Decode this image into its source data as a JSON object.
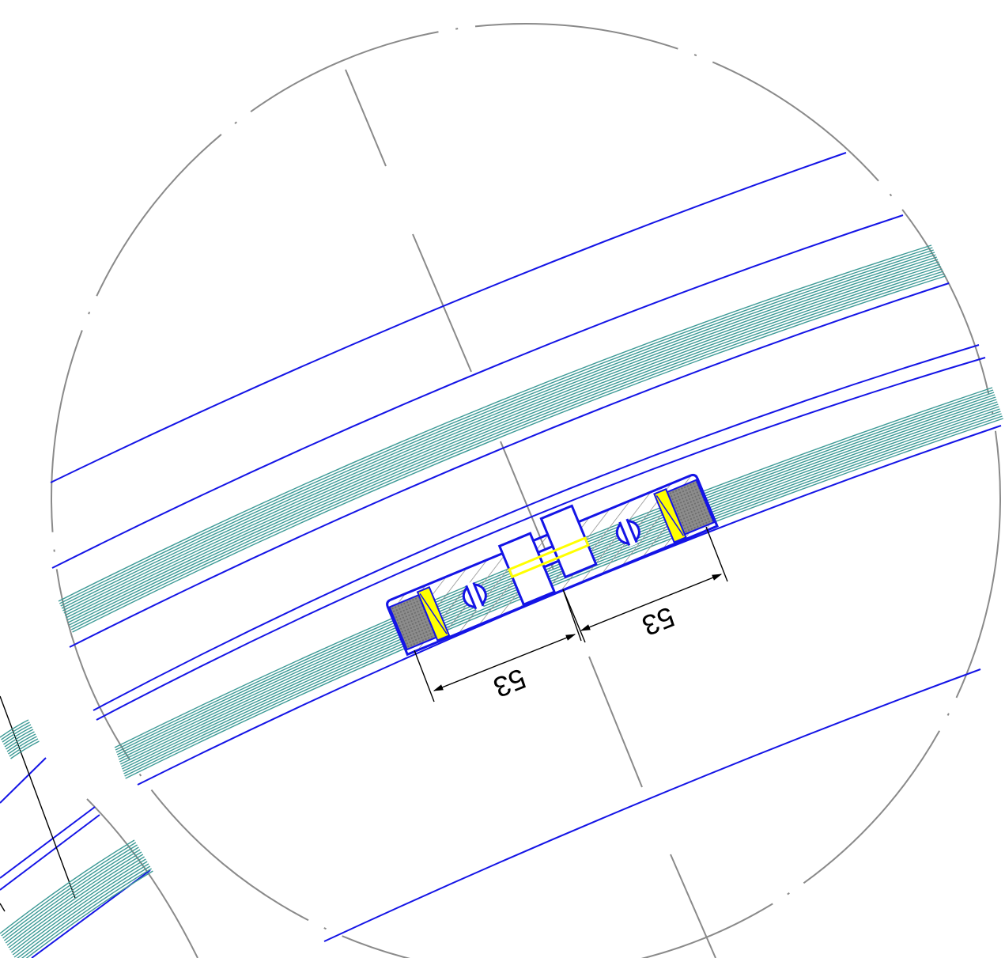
{
  "drawing": {
    "dimensions": [
      {
        "label": "53"
      },
      {
        "label": "53"
      }
    ],
    "colors": {
      "profile_outline": "#1414e6",
      "glazing": "#3d9a96",
      "construction_lines": "#8a8a8a",
      "seal": "#ffff00",
      "gasket": "#8c8c8c",
      "dimension": "#000000"
    }
  }
}
